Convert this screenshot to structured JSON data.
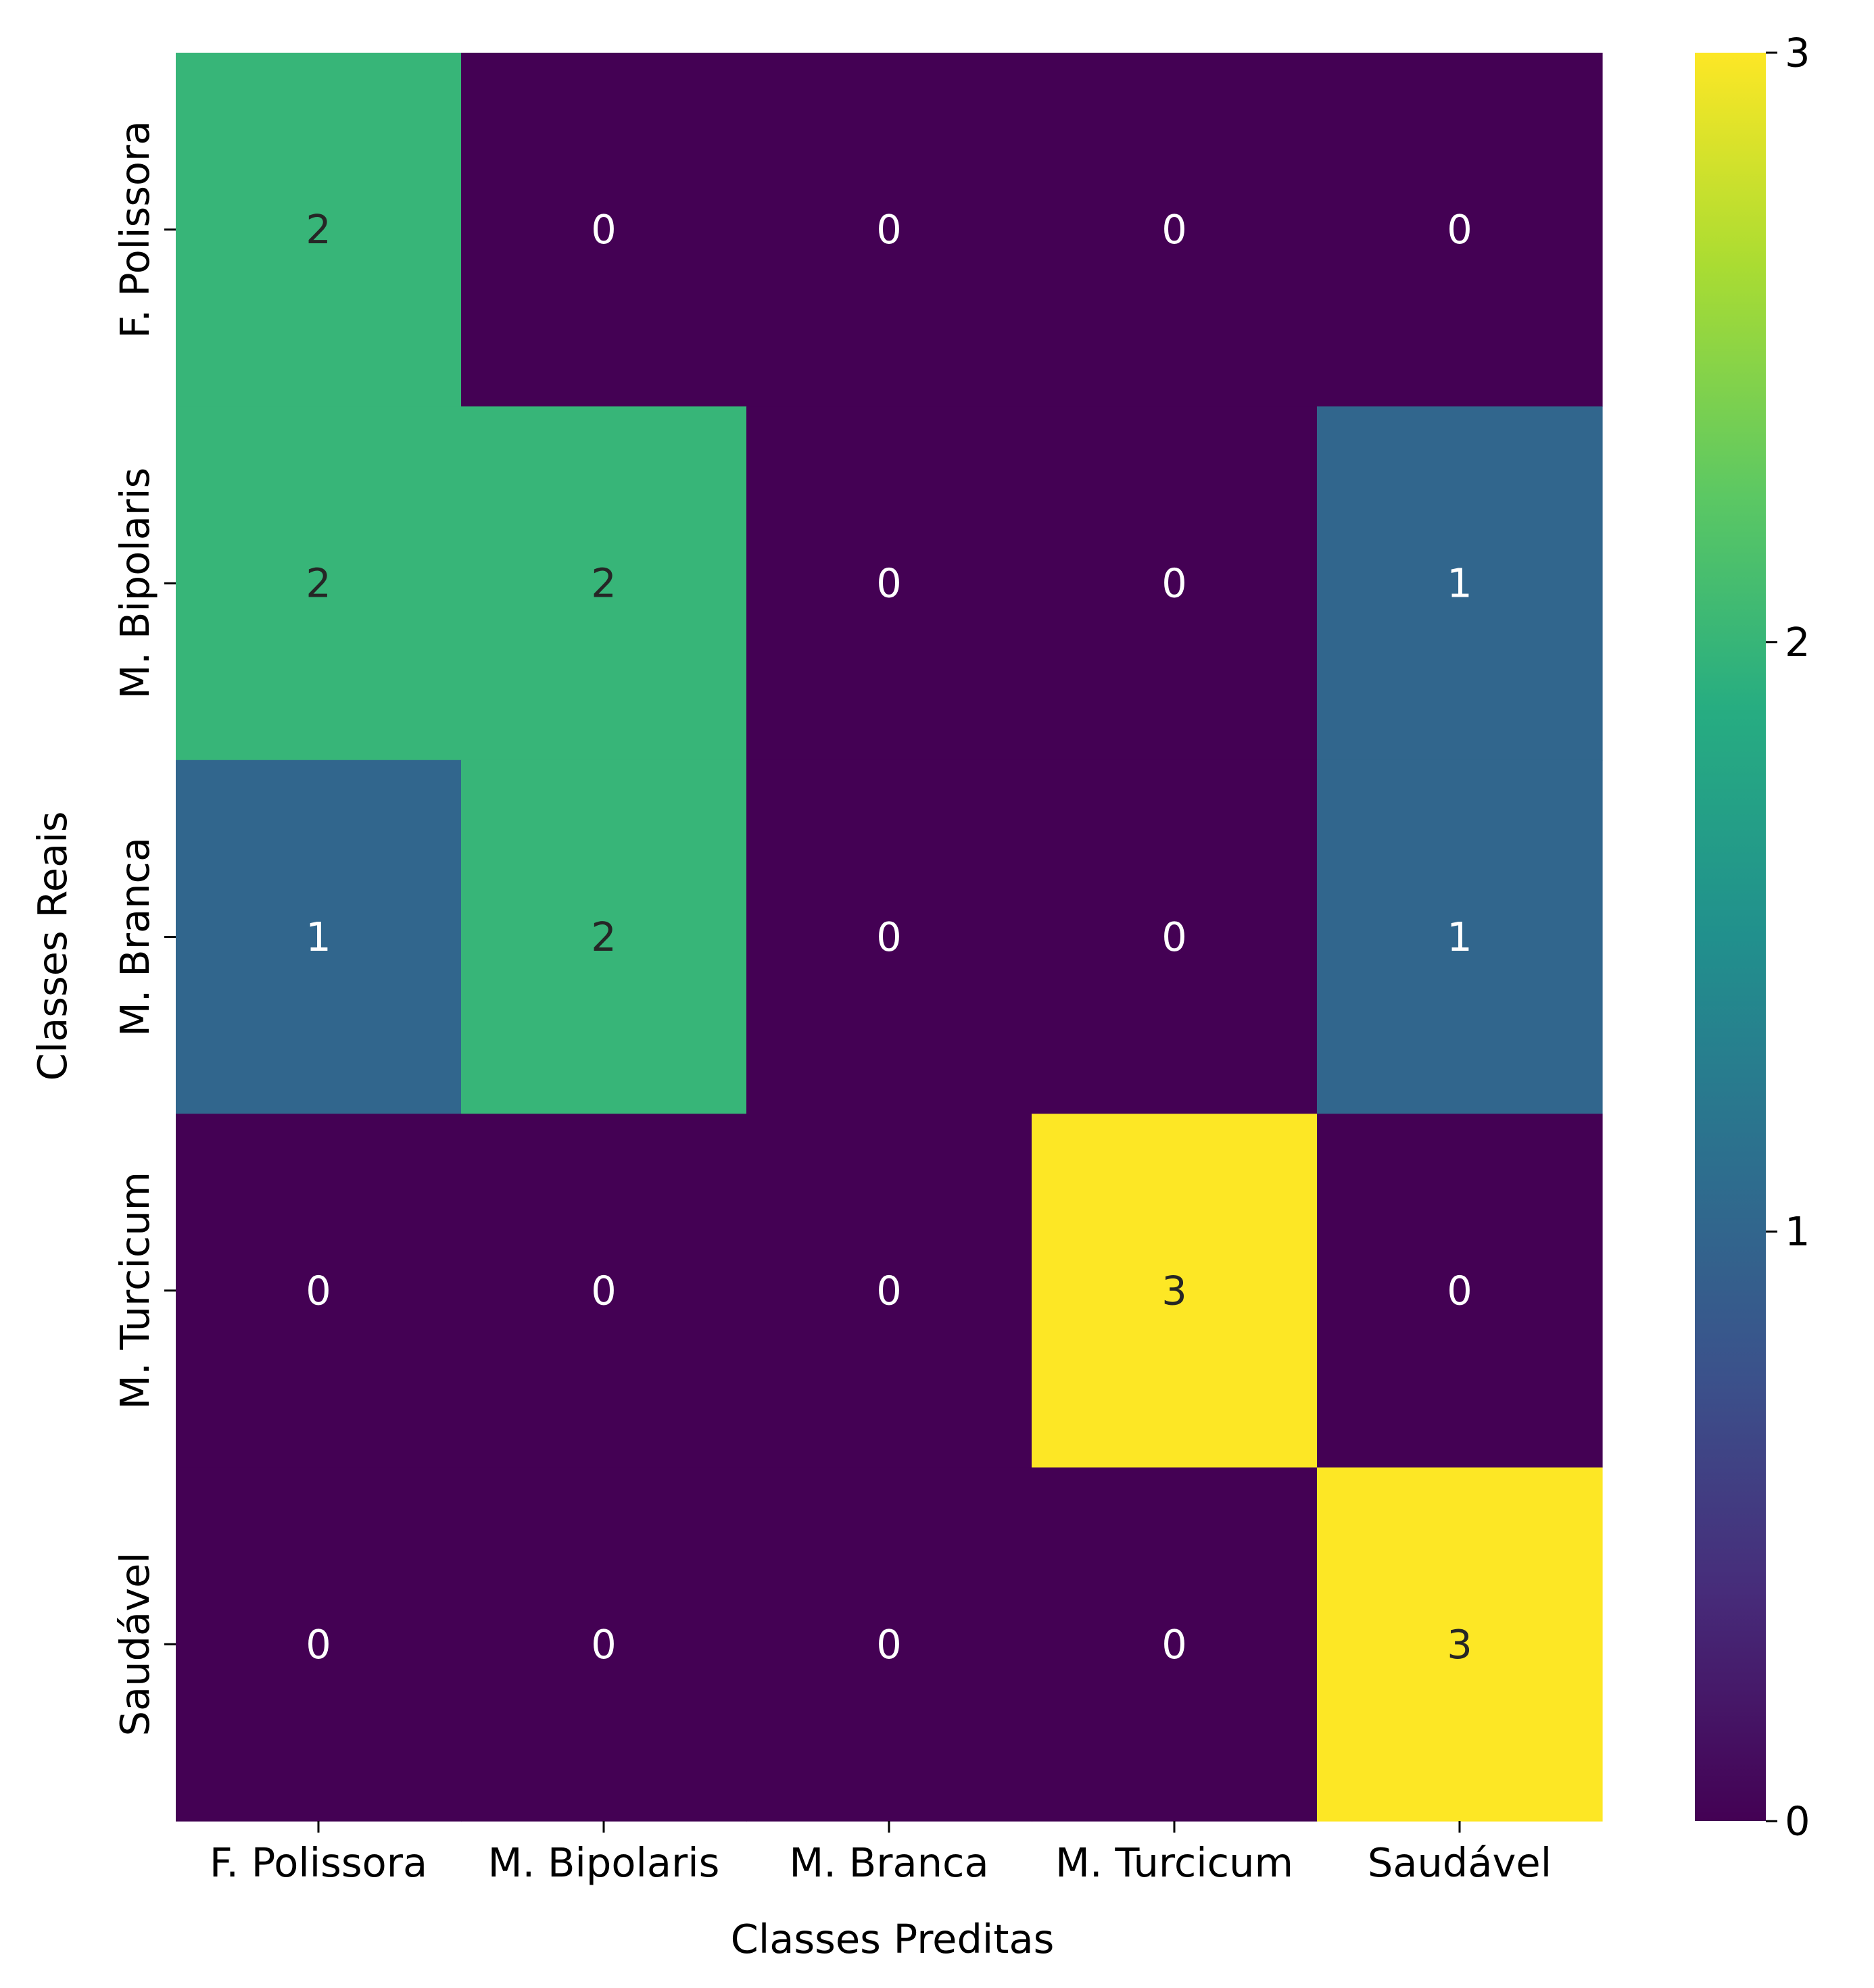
{
  "chart_data": {
    "type": "heatmap",
    "xlabel": "Classes Preditas",
    "ylabel": "Classes Reais",
    "x_categories": [
      "F. Polissora",
      "M. Bipolaris",
      "M. Branca",
      "M. Turcicum",
      "Saudável"
    ],
    "y_categories": [
      "F. Polissora",
      "M. Bipolaris",
      "M. Branca",
      "M. Turcicum",
      "Saudável"
    ],
    "matrix": [
      [
        2,
        0,
        0,
        0,
        0
      ],
      [
        2,
        2,
        0,
        0,
        1
      ],
      [
        1,
        2,
        0,
        0,
        1
      ],
      [
        0,
        0,
        0,
        3,
        0
      ],
      [
        0,
        0,
        0,
        0,
        3
      ]
    ],
    "colormap": "viridis",
    "colorbar": {
      "min": 0,
      "max": 3,
      "ticks": [
        0,
        1,
        2,
        3
      ]
    },
    "annotation_colors": {
      "light": "#ffffff",
      "dark": "#262626"
    },
    "grid": false
  }
}
